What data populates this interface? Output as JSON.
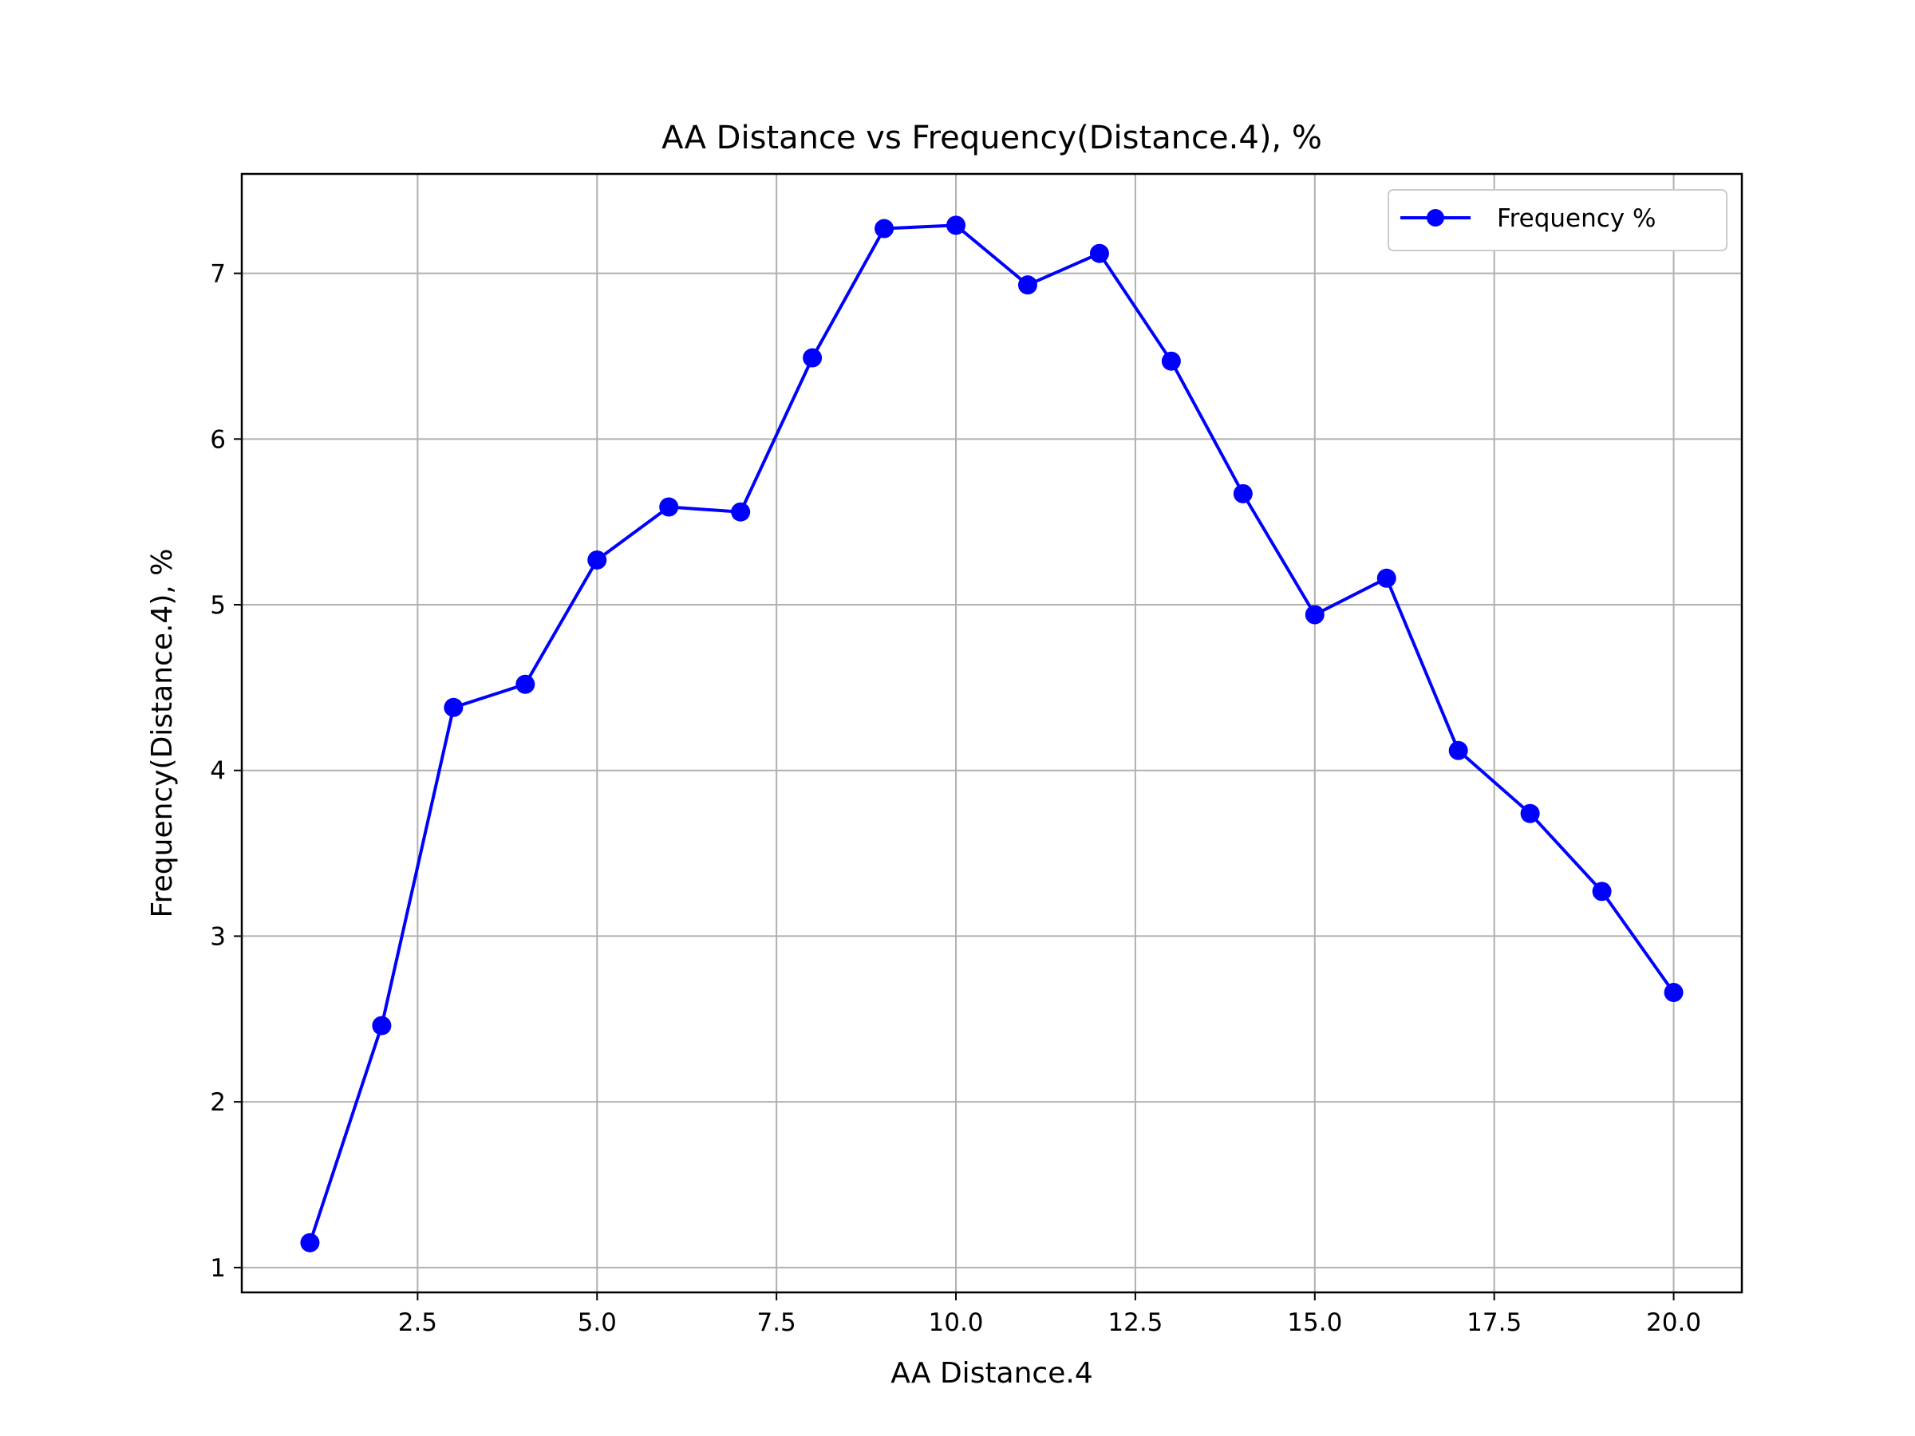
{
  "chart_data": {
    "type": "line",
    "title": "AA Distance vs Frequency(Distance.4), %",
    "xlabel": "AA Distance.4",
    "ylabel": "Frequency(Distance.4), %",
    "x_ticks": [
      "2.5",
      "5.0",
      "7.5",
      "10.0",
      "12.5",
      "15.0",
      "17.5",
      "20.0"
    ],
    "y_ticks": [
      "1",
      "2",
      "3",
      "4",
      "5",
      "6",
      "7"
    ],
    "xlim": [
      0.05,
      20.95
    ],
    "ylim": [
      0.85,
      7.6
    ],
    "grid": true,
    "legend_position": "top-right",
    "series": [
      {
        "name": "Frequency %",
        "color": "#0000ff",
        "marker": "circle",
        "x": [
          1,
          2,
          3,
          4,
          5,
          6,
          7,
          8,
          9,
          10,
          11,
          12,
          13,
          14,
          15,
          16,
          17,
          18,
          19,
          20
        ],
        "y": [
          1.15,
          2.46,
          4.38,
          4.52,
          5.27,
          5.59,
          5.56,
          6.49,
          7.27,
          7.29,
          6.93,
          7.12,
          6.47,
          5.67,
          4.94,
          5.16,
          4.12,
          3.74,
          3.27,
          2.66
        ]
      }
    ]
  }
}
